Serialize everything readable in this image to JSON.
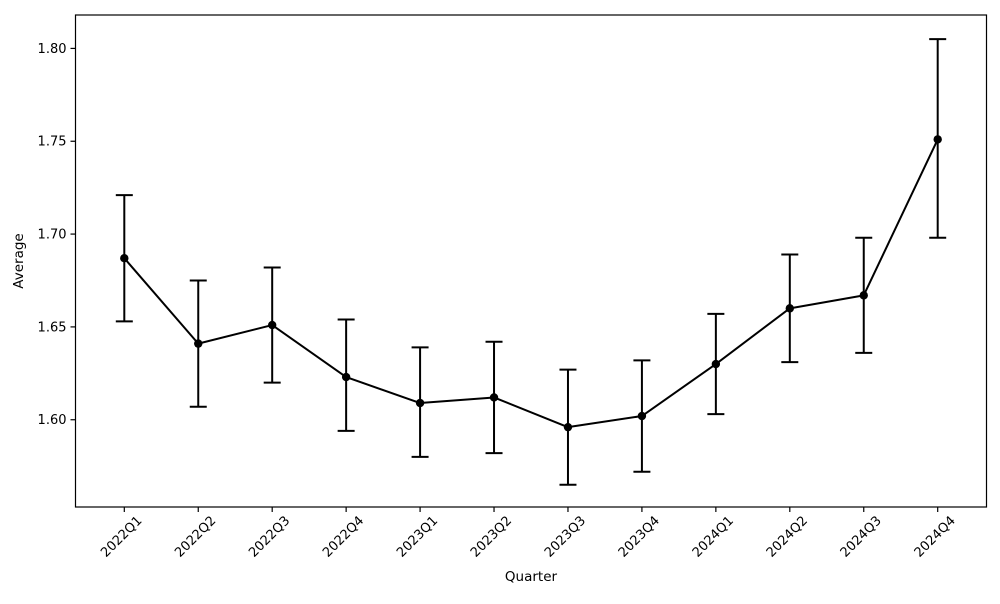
{
  "chart_data": {
    "type": "line",
    "title": "",
    "xlabel": "Quarter",
    "ylabel": "Average",
    "categories": [
      "2022Q1",
      "2022Q2",
      "2022Q3",
      "2022Q4",
      "2023Q1",
      "2023Q2",
      "2023Q3",
      "2023Q4",
      "2024Q1",
      "2024Q2",
      "2024Q3",
      "2024Q4"
    ],
    "series": [
      {
        "name": "Average",
        "values": [
          1.687,
          1.641,
          1.651,
          1.623,
          1.609,
          1.612,
          1.596,
          1.602,
          1.63,
          1.66,
          1.667,
          1.751
        ],
        "error_low": [
          1.653,
          1.607,
          1.62,
          1.594,
          1.58,
          1.582,
          1.565,
          1.572,
          1.603,
          1.631,
          1.636,
          1.698
        ],
        "error_high": [
          1.721,
          1.675,
          1.682,
          1.654,
          1.639,
          1.642,
          1.627,
          1.632,
          1.657,
          1.689,
          1.698,
          1.805
        ]
      }
    ],
    "ytick_labels": [
      "1.60",
      "1.65",
      "1.70",
      "1.75",
      "1.80"
    ],
    "ylim": [
      1.553,
      1.818
    ],
    "xlim": [
      -0.66,
      11.66
    ],
    "x_tick_rotation_deg": 45,
    "grid": false,
    "legend_position": "none",
    "marker": "circle-filled",
    "line_color": "#000000",
    "marker_color": "#000000",
    "errorbar_color": "#000000",
    "axis_color": "#000000",
    "background_color": "#ffffff",
    "error_caps": true
  }
}
